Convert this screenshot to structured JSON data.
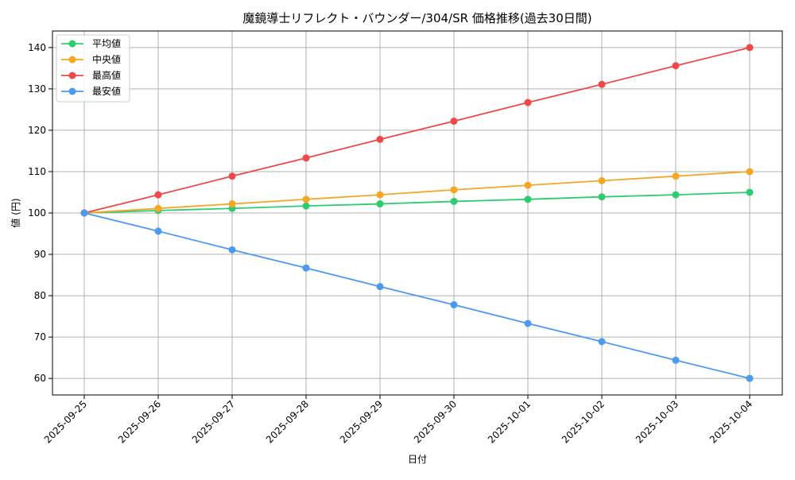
{
  "chart_data": {
    "type": "line",
    "title": "魔鏡導士リフレクト・バウンダー/304/SR 価格推移(過去30日間)",
    "xlabel": "日付",
    "ylabel": "値 (円)",
    "ylim": [
      56,
      144
    ],
    "yticks": [
      60,
      70,
      80,
      90,
      100,
      110,
      120,
      130,
      140
    ],
    "grid": true,
    "legend_position": "top-left",
    "categories": [
      "2025-09-25",
      "2025-09-26",
      "2025-09-27",
      "2025-09-28",
      "2025-09-29",
      "2025-09-30",
      "2025-10-01",
      "2025-10-02",
      "2025-10-03",
      "2025-10-04"
    ],
    "series": [
      {
        "name": "平均値",
        "color": "#2ecc71",
        "values": [
          100,
          100.6,
          101.1,
          101.7,
          102.2,
          102.8,
          103.3,
          103.9,
          104.4,
          105
        ]
      },
      {
        "name": "中央値",
        "color": "#f5a623",
        "values": [
          100,
          101.1,
          102.2,
          103.3,
          104.4,
          105.6,
          106.7,
          107.8,
          108.9,
          110
        ]
      },
      {
        "name": "最高値",
        "color": "#f04848",
        "values": [
          100,
          104.4,
          108.9,
          113.3,
          117.8,
          122.2,
          126.7,
          131.1,
          135.6,
          140
        ]
      },
      {
        "name": "最安値",
        "color": "#4a9af0",
        "values": [
          100,
          95.6,
          91.1,
          86.7,
          82.2,
          77.8,
          73.3,
          68.9,
          64.4,
          60
        ]
      }
    ]
  }
}
